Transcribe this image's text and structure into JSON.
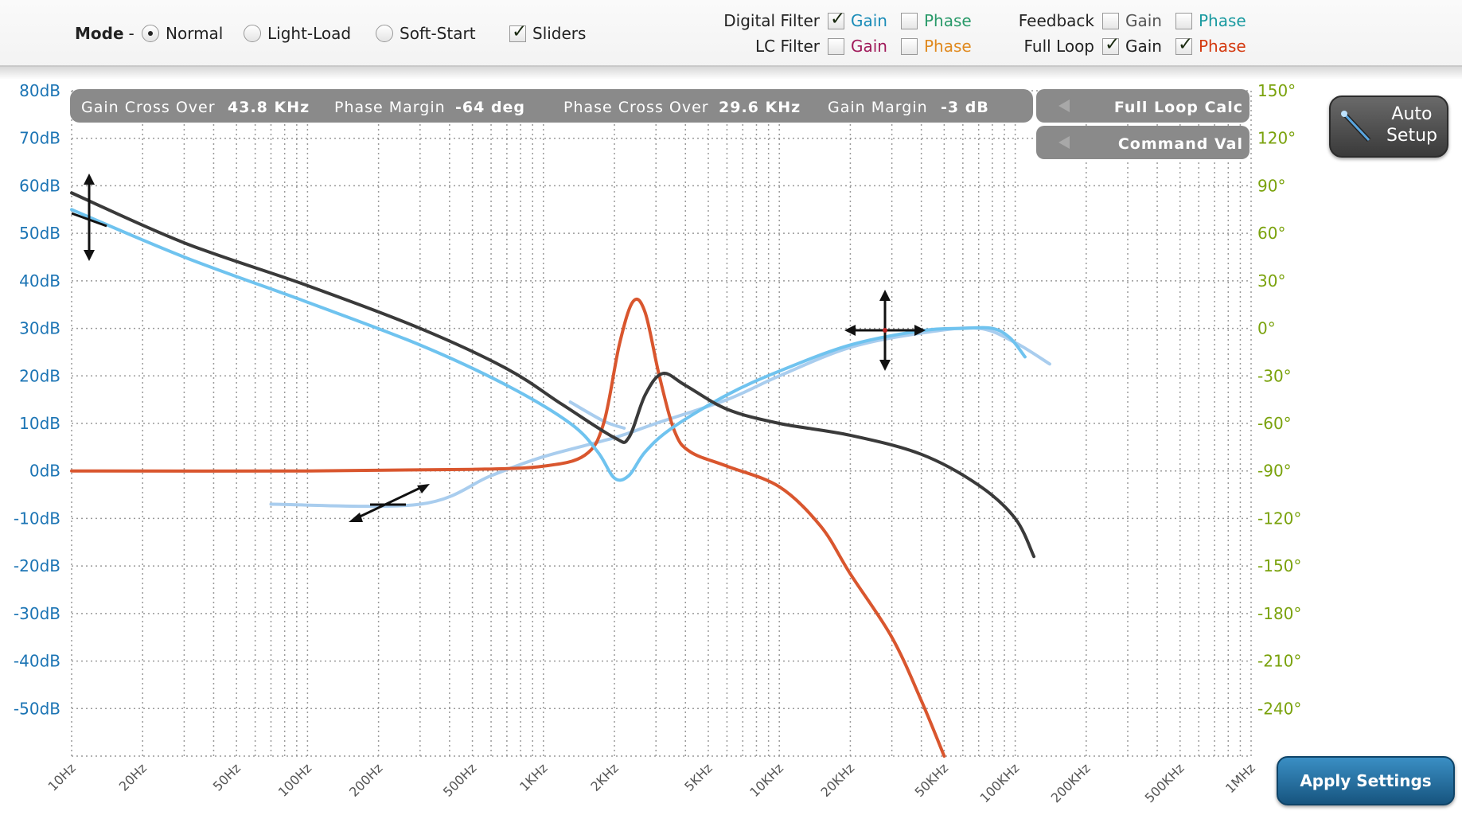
{
  "mode": {
    "label": "Mode",
    "separator": "-",
    "options": [
      {
        "label": "Normal",
        "selected": true
      },
      {
        "label": "Light-Load",
        "selected": false
      },
      {
        "label": "Soft-Start",
        "selected": false
      }
    ],
    "sliders": {
      "label": "Sliders",
      "checked": true
    }
  },
  "filters": {
    "digital_filter": {
      "label": "Digital Filter",
      "gain": {
        "label": "Gain",
        "checked": true,
        "color": "#1a8cb8"
      },
      "phase": {
        "label": "Phase",
        "checked": false,
        "color": "#2a9a6a"
      }
    },
    "lc_filter": {
      "label": "LC Filter",
      "gain": {
        "label": "Gain",
        "checked": false,
        "color": "#a01a5a"
      },
      "phase": {
        "label": "Phase",
        "checked": false,
        "color": "#e08a20"
      }
    },
    "feedback": {
      "label": "Feedback",
      "gain": {
        "label": "Gain",
        "checked": false,
        "color": "#555555"
      },
      "phase": {
        "label": "Phase",
        "checked": false,
        "color": "#1a9aa0"
      }
    },
    "full_loop": {
      "label": "Full Loop",
      "gain": {
        "label": "Gain",
        "checked": true,
        "color": "#222222"
      },
      "phase": {
        "label": "Phase",
        "checked": true,
        "color": "#d43a10"
      }
    }
  },
  "info_bar": {
    "gain_cross_label": "Gain Cross Over",
    "gain_cross_value": "43.8 KHz",
    "phase_margin_label": "Phase Margin",
    "phase_margin_value": "-64 deg",
    "phase_cross_label": "Phase Cross Over",
    "phase_cross_value": "29.6 KHz",
    "gain_margin_label": "Gain Margin",
    "gain_margin_value": "-3 dB"
  },
  "tabs": {
    "full_loop_calc": "Full Loop Calc",
    "command_val": "Command Val"
  },
  "buttons": {
    "auto_setup_line1": "Auto",
    "auto_setup_line2": "Setup",
    "apply": "Apply Settings"
  },
  "chart_data": {
    "type": "line",
    "x_scale": "log",
    "y_left_ticks": [
      "80dB",
      "70dB",
      "60dB",
      "50dB",
      "40dB",
      "30dB",
      "20dB",
      "10dB",
      "0dB",
      "-10dB",
      "-20dB",
      "-30dB",
      "-40dB",
      "-50dB"
    ],
    "y_left_range": [
      -60,
      80
    ],
    "y_right_ticks": [
      "150°",
      "120°",
      "90°",
      "60°",
      "30°",
      "0°",
      "-30°",
      "-60°",
      "-90°",
      "-120°",
      "-150°",
      "-180°",
      "-210°",
      "-240°"
    ],
    "y_right_range": [
      -270,
      150
    ],
    "x_tick_labels": [
      "10Hz",
      "20Hz",
      "50Hz",
      "100Hz",
      "200Hz",
      "500Hz",
      "1KHz",
      "2KHz",
      "5KHz",
      "10KHz",
      "20KHz",
      "50KHz",
      "100KHz",
      "200KHz",
      "500KHz",
      "1MHz"
    ],
    "x_tick_values": [
      10,
      20,
      50,
      100,
      200,
      500,
      1000,
      2000,
      5000,
      10000,
      20000,
      50000,
      100000,
      200000,
      500000,
      1000000
    ],
    "colors": {
      "left_axis": "#1b74b4",
      "right_axis": "#7aa20c",
      "full_loop_gain": "#3a3a3a",
      "digital_filter_gain": "#6fc3ef",
      "full_loop_phase": "#d9562e",
      "target_gain": "#a9cdee"
    },
    "series": [
      {
        "key": "full_loop_gain",
        "axis": "left",
        "points": [
          [
            10,
            58.5
          ],
          [
            30,
            48
          ],
          [
            100,
            39
          ],
          [
            300,
            30
          ],
          [
            700,
            21.5
          ],
          [
            1200,
            14
          ],
          [
            2000,
            7
          ],
          [
            2300,
            7
          ],
          [
            2700,
            16
          ],
          [
            3200,
            20.5
          ],
          [
            4000,
            18
          ],
          [
            6000,
            13
          ],
          [
            10000,
            10
          ],
          [
            20000,
            7.5
          ],
          [
            40000,
            3.5
          ],
          [
            70000,
            -3
          ],
          [
            100000,
            -10
          ],
          [
            120000,
            -18
          ]
        ]
      },
      {
        "key": "digital_filter_gain",
        "axis": "left",
        "points": [
          [
            10,
            55
          ],
          [
            30,
            45
          ],
          [
            100,
            35.5
          ],
          [
            300,
            26.5
          ],
          [
            700,
            18
          ],
          [
            1300,
            10
          ],
          [
            1700,
            4
          ],
          [
            2000,
            -1.5
          ],
          [
            2300,
            -1
          ],
          [
            2700,
            4
          ],
          [
            3500,
            9
          ],
          [
            6000,
            16
          ],
          [
            10000,
            21
          ],
          [
            20000,
            26.5
          ],
          [
            40000,
            29.5
          ],
          [
            60000,
            30
          ],
          [
            80000,
            30
          ],
          [
            95000,
            28
          ],
          [
            110000,
            24
          ]
        ]
      },
      {
        "key": "target_gain",
        "axis": "left",
        "points": [
          [
            70,
            -7
          ],
          [
            300,
            -7
          ],
          [
            600,
            -1
          ],
          [
            1000,
            3
          ],
          [
            2000,
            7
          ],
          [
            3000,
            10
          ],
          [
            6000,
            15
          ],
          [
            10000,
            20
          ],
          [
            20000,
            26
          ],
          [
            40000,
            29
          ],
          [
            70000,
            30
          ],
          [
            100000,
            27
          ],
          [
            140000,
            22.5
          ]
        ]
      },
      {
        "key": "target_gain_upper",
        "axis": "left",
        "points": [
          [
            1300,
            14.5
          ],
          [
            1800,
            10.5
          ],
          [
            2200,
            9
          ]
        ]
      },
      {
        "key": "full_loop_phase",
        "axis": "right",
        "points": [
          [
            10,
            -90
          ],
          [
            100,
            -90
          ],
          [
            500,
            -89
          ],
          [
            1000,
            -87
          ],
          [
            1500,
            -80
          ],
          [
            1800,
            -60
          ],
          [
            2100,
            -10
          ],
          [
            2400,
            17
          ],
          [
            2700,
            10
          ],
          [
            3100,
            -30
          ],
          [
            3600,
            -65
          ],
          [
            4200,
            -78
          ],
          [
            6000,
            -87
          ],
          [
            10000,
            -100
          ],
          [
            15000,
            -125
          ],
          [
            20000,
            -155
          ],
          [
            30000,
            -195
          ],
          [
            40000,
            -235
          ],
          [
            50000,
            -270
          ]
        ]
      }
    ]
  }
}
